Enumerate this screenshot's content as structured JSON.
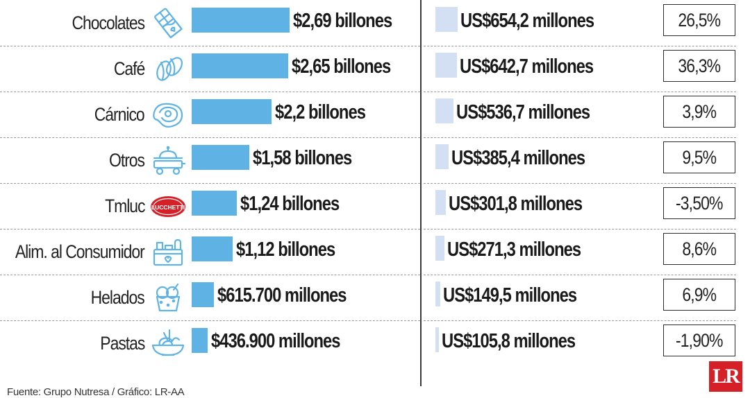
{
  "chart_data": {
    "type": "bar",
    "categories": [
      "Chocolates",
      "Café",
      "Cárnico",
      "Otros",
      "Tmluc",
      "Alim. al Consumidor",
      "Helados",
      "Pastas"
    ],
    "series": [
      {
        "values": [
          2690000,
          2650000,
          2200000,
          1580000,
          1240000,
          1120000,
          615700,
          436900
        ],
        "labels": [
          "$2,69 billones",
          "$2,65 billones",
          "$2,2 billones",
          "$1,58 billones",
          "$1,24 billones",
          "$1,12 billones",
          "$615.700 millones",
          "$436.900 millones"
        ]
      },
      {
        "values": [
          654.2,
          642.7,
          536.7,
          385.4,
          301.8,
          271.3,
          149.5,
          105.8
        ],
        "labels": [
          "US$654,2 millones",
          "US$642,7 millones",
          "US$536,7 millones",
          "US$385,4 millones",
          "US$301,8 millones",
          "US$271,3 millones",
          "US$149,5 millones",
          "US$105,8 millones"
        ]
      }
    ],
    "changes": [
      "26,5%",
      "36,3%",
      "3,9%",
      "9,5%",
      "-3,50%",
      "8,6%",
      "6,9%",
      "-1,90%"
    ]
  },
  "icons": [
    "chocolate-bar-icon",
    "coffee-bean-icon",
    "steak-icon",
    "food-cart-icon",
    "lucchetti-logo-icon",
    "grocery-basket-icon",
    "ice-cream-cup-icon",
    "pasta-bowl-icon"
  ],
  "icon_texts": {
    "lucchetti": "LUCCHETTI"
  },
  "colors": {
    "bar_cop": "#5fb3e4",
    "bar_usd": "#d3e0f3",
    "icon_blue": "#5fb3e4",
    "logo_red": "#d62027"
  },
  "footer": {
    "source": "Fuente: Grupo Nutresa / Gráfico: LR-AA",
    "logo": "LR"
  }
}
